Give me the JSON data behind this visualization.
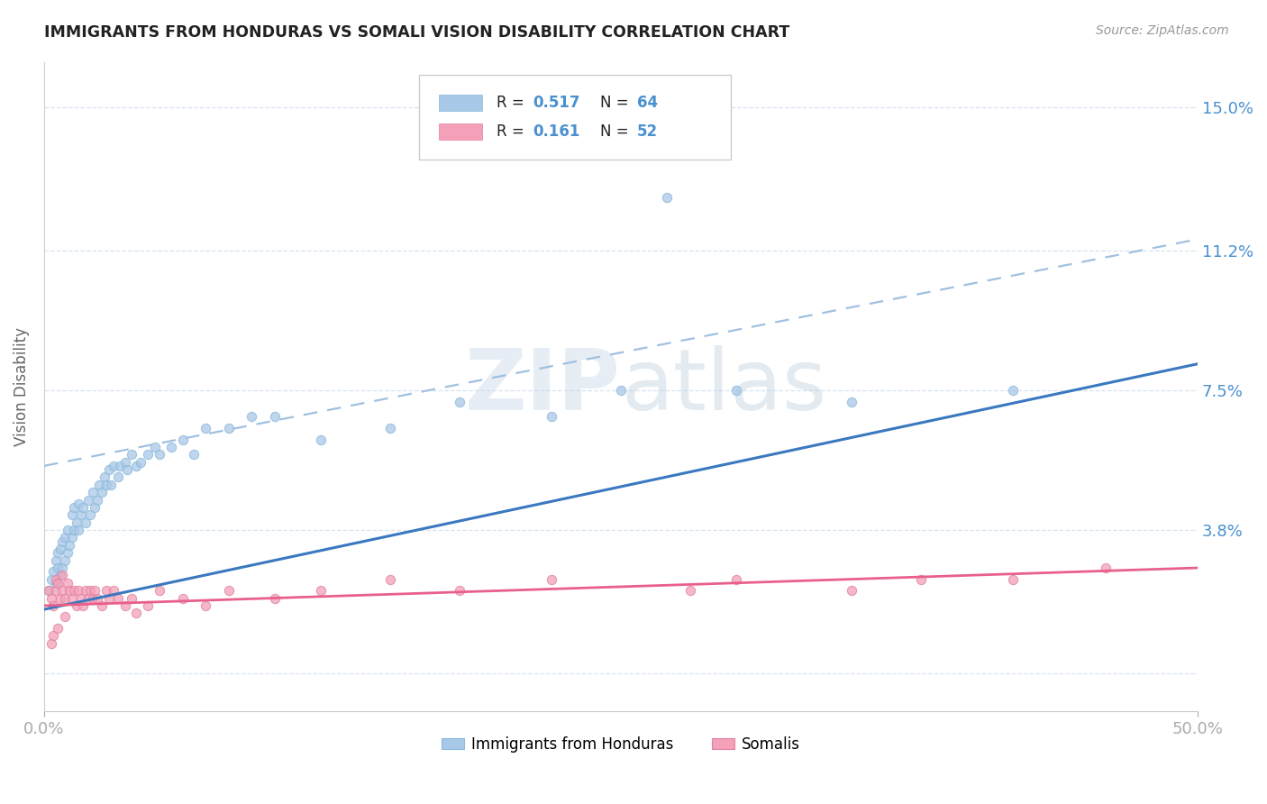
{
  "title": "IMMIGRANTS FROM HONDURAS VS SOMALI VISION DISABILITY CORRELATION CHART",
  "source": "Source: ZipAtlas.com",
  "ylabel": "Vision Disability",
  "x_min": 0.0,
  "x_max": 0.5,
  "y_min": -0.01,
  "y_max": 0.162,
  "yticks": [
    0.0,
    0.038,
    0.075,
    0.112,
    0.15
  ],
  "ytick_labels": [
    "",
    "3.8%",
    "7.5%",
    "11.2%",
    "15.0%"
  ],
  "xtick_labels": [
    "0.0%",
    "50.0%"
  ],
  "blue_color": "#a8c8e8",
  "pink_color": "#f4a0b8",
  "blue_line_color": "#3a78c0",
  "pink_line_color": "#e8608a",
  "blue_dashed_color": "#a0c0e0",
  "legend_R_blue": "0.517",
  "legend_N_blue": "64",
  "legend_R_pink": "0.161",
  "legend_N_pink": "52",
  "blue_scatter_x": [
    0.002,
    0.003,
    0.004,
    0.005,
    0.005,
    0.006,
    0.006,
    0.007,
    0.007,
    0.008,
    0.008,
    0.009,
    0.009,
    0.01,
    0.01,
    0.011,
    0.012,
    0.012,
    0.013,
    0.013,
    0.014,
    0.015,
    0.015,
    0.016,
    0.017,
    0.018,
    0.019,
    0.02,
    0.021,
    0.022,
    0.023,
    0.024,
    0.025,
    0.026,
    0.027,
    0.028,
    0.029,
    0.03,
    0.032,
    0.033,
    0.035,
    0.036,
    0.038,
    0.04,
    0.042,
    0.045,
    0.048,
    0.05,
    0.055,
    0.06,
    0.065,
    0.07,
    0.08,
    0.09,
    0.1,
    0.12,
    0.15,
    0.18,
    0.22,
    0.25,
    0.3,
    0.35,
    0.42,
    0.27
  ],
  "blue_scatter_y": [
    0.022,
    0.025,
    0.027,
    0.024,
    0.03,
    0.028,
    0.032,
    0.026,
    0.033,
    0.028,
    0.035,
    0.03,
    0.036,
    0.032,
    0.038,
    0.034,
    0.036,
    0.042,
    0.038,
    0.044,
    0.04,
    0.038,
    0.045,
    0.042,
    0.044,
    0.04,
    0.046,
    0.042,
    0.048,
    0.044,
    0.046,
    0.05,
    0.048,
    0.052,
    0.05,
    0.054,
    0.05,
    0.055,
    0.052,
    0.055,
    0.056,
    0.054,
    0.058,
    0.055,
    0.056,
    0.058,
    0.06,
    0.058,
    0.06,
    0.062,
    0.058,
    0.065,
    0.065,
    0.068,
    0.068,
    0.062,
    0.065,
    0.072,
    0.068,
    0.075,
    0.075,
    0.072,
    0.075,
    0.126
  ],
  "pink_scatter_x": [
    0.002,
    0.003,
    0.004,
    0.005,
    0.005,
    0.006,
    0.007,
    0.008,
    0.008,
    0.009,
    0.01,
    0.011,
    0.012,
    0.013,
    0.014,
    0.015,
    0.016,
    0.017,
    0.018,
    0.019,
    0.02,
    0.021,
    0.022,
    0.023,
    0.025,
    0.027,
    0.028,
    0.03,
    0.032,
    0.035,
    0.038,
    0.04,
    0.045,
    0.05,
    0.06,
    0.07,
    0.08,
    0.1,
    0.12,
    0.15,
    0.18,
    0.22,
    0.28,
    0.3,
    0.35,
    0.38,
    0.42,
    0.46,
    0.003,
    0.004,
    0.006,
    0.009
  ],
  "pink_scatter_y": [
    0.022,
    0.02,
    0.018,
    0.025,
    0.022,
    0.024,
    0.02,
    0.026,
    0.022,
    0.02,
    0.024,
    0.022,
    0.02,
    0.022,
    0.018,
    0.022,
    0.02,
    0.018,
    0.022,
    0.02,
    0.022,
    0.02,
    0.022,
    0.02,
    0.018,
    0.022,
    0.02,
    0.022,
    0.02,
    0.018,
    0.02,
    0.016,
    0.018,
    0.022,
    0.02,
    0.018,
    0.022,
    0.02,
    0.022,
    0.025,
    0.022,
    0.025,
    0.022,
    0.025,
    0.022,
    0.025,
    0.025,
    0.028,
    0.008,
    0.01,
    0.012,
    0.015
  ],
  "blue_line": [
    0.0,
    0.017,
    0.5,
    0.082
  ],
  "blue_dashed": [
    0.0,
    0.055,
    0.5,
    0.115
  ],
  "pink_line": [
    0.0,
    0.018,
    0.5,
    0.028
  ],
  "watermark_zip": "ZIP",
  "watermark_atlas": "atlas",
  "tick_color": "#4a90d0",
  "grid_color": "#d8e4f0",
  "background_color": "#ffffff",
  "title_color": "#222222",
  "axis_label_color": "#666666"
}
